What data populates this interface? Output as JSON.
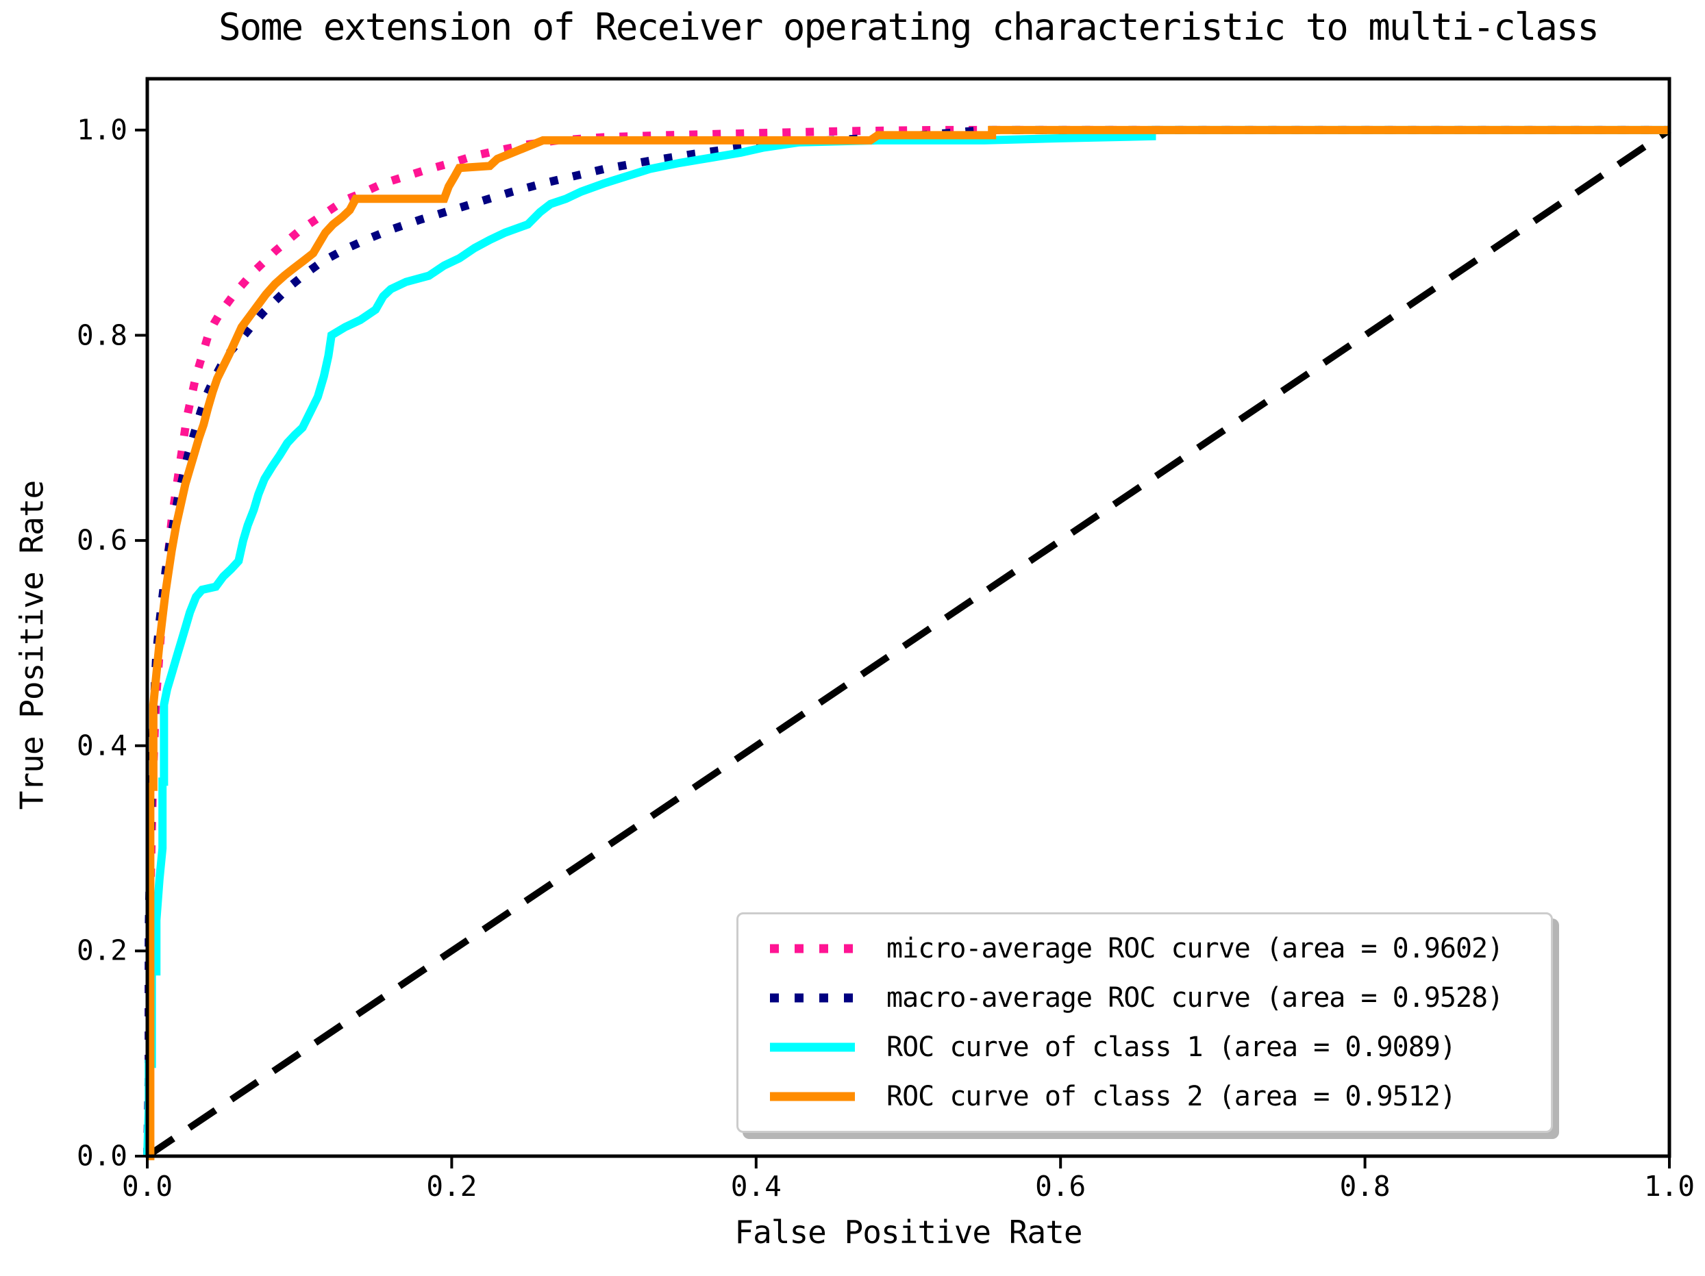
{
  "figure": {
    "title": "Some extension of Receiver operating characteristic to multi-class",
    "xlabel": "False Positive Rate",
    "ylabel": "True Positive Rate"
  },
  "chart_data": {
    "type": "line",
    "title": "Some extension of Receiver operating characteristic to multi-class",
    "xlabel": "False Positive Rate",
    "ylabel": "True Positive Rate",
    "xlim": [
      0.0,
      1.0
    ],
    "ylim": [
      0.0,
      1.05
    ],
    "x_ticks": [
      {
        "value": 0.0,
        "label": "0.0"
      },
      {
        "value": 0.2,
        "label": "0.2"
      },
      {
        "value": 0.4,
        "label": "0.4"
      },
      {
        "value": 0.6,
        "label": "0.6"
      },
      {
        "value": 0.8,
        "label": "0.8"
      },
      {
        "value": 1.0,
        "label": "1.0"
      }
    ],
    "y_ticks": [
      {
        "value": 0.0,
        "label": "0.0"
      },
      {
        "value": 0.2,
        "label": "0.2"
      },
      {
        "value": 0.4,
        "label": "0.4"
      },
      {
        "value": 0.6,
        "label": "0.6"
      },
      {
        "value": 0.8,
        "label": "0.8"
      },
      {
        "value": 1.0,
        "label": "1.0"
      }
    ],
    "grid": false,
    "legend_position": "lower right",
    "series": [
      {
        "name": "chance-diagonal",
        "label": "",
        "show_in_legend": false,
        "color": "#000000",
        "line_style": "dashed",
        "points": [
          [
            0,
            0
          ],
          [
            1,
            1
          ]
        ]
      },
      {
        "name": "micro-average",
        "label": "micro-average ROC curve (area = 0.9602)",
        "area": 0.9602,
        "show_in_legend": true,
        "color": "#ff1493",
        "line_style": "dotted",
        "points": [
          [
            0,
            0
          ],
          [
            0.001,
            0.06
          ],
          [
            0.001,
            0.18
          ],
          [
            0.002,
            0.25
          ],
          [
            0.003,
            0.32
          ],
          [
            0.004,
            0.38
          ],
          [
            0.005,
            0.42
          ],
          [
            0.006,
            0.45
          ],
          [
            0.008,
            0.49
          ],
          [
            0.009,
            0.51
          ],
          [
            0.01,
            0.53
          ],
          [
            0.012,
            0.56
          ],
          [
            0.014,
            0.59
          ],
          [
            0.016,
            0.62
          ],
          [
            0.018,
            0.64
          ],
          [
            0.02,
            0.66
          ],
          [
            0.023,
            0.69
          ],
          [
            0.026,
            0.72
          ],
          [
            0.029,
            0.74
          ],
          [
            0.032,
            0.76
          ],
          [
            0.036,
            0.78
          ],
          [
            0.04,
            0.8
          ],
          [
            0.044,
            0.812
          ],
          [
            0.048,
            0.822
          ],
          [
            0.053,
            0.832
          ],
          [
            0.058,
            0.842
          ],
          [
            0.064,
            0.852
          ],
          [
            0.07,
            0.862
          ],
          [
            0.077,
            0.872
          ],
          [
            0.084,
            0.882
          ],
          [
            0.092,
            0.892
          ],
          [
            0.1,
            0.902
          ],
          [
            0.11,
            0.912
          ],
          [
            0.12,
            0.922
          ],
          [
            0.13,
            0.932
          ],
          [
            0.14,
            0.938
          ],
          [
            0.155,
            0.948
          ],
          [
            0.17,
            0.955
          ],
          [
            0.185,
            0.962
          ],
          [
            0.2,
            0.968
          ],
          [
            0.215,
            0.975
          ],
          [
            0.23,
            0.98
          ],
          [
            0.25,
            0.986
          ],
          [
            0.27,
            0.99
          ],
          [
            0.3,
            0.993
          ],
          [
            0.34,
            0.995
          ],
          [
            0.4,
            0.997
          ],
          [
            0.46,
            0.999
          ],
          [
            0.52,
            1
          ],
          [
            1,
            1
          ]
        ]
      },
      {
        "name": "macro-average",
        "label": "macro-average ROC curve (area = 0.9528)",
        "area": 0.9528,
        "show_in_legend": true,
        "color": "#000080",
        "line_style": "dotted",
        "points": [
          [
            0,
            0
          ],
          [
            0.001,
            0.08
          ],
          [
            0.001,
            0.22
          ],
          [
            0.002,
            0.3
          ],
          [
            0.003,
            0.37
          ],
          [
            0.004,
            0.42
          ],
          [
            0.005,
            0.46
          ],
          [
            0.006,
            0.49
          ],
          [
            0.008,
            0.52
          ],
          [
            0.01,
            0.545
          ],
          [
            0.012,
            0.57
          ],
          [
            0.014,
            0.59
          ],
          [
            0.017,
            0.615
          ],
          [
            0.02,
            0.64
          ],
          [
            0.023,
            0.66
          ],
          [
            0.027,
            0.685
          ],
          [
            0.031,
            0.705
          ],
          [
            0.035,
            0.725
          ],
          [
            0.039,
            0.742
          ],
          [
            0.044,
            0.758
          ],
          [
            0.049,
            0.772
          ],
          [
            0.055,
            0.785
          ],
          [
            0.061,
            0.795
          ],
          [
            0.068,
            0.808
          ],
          [
            0.076,
            0.822
          ],
          [
            0.085,
            0.835
          ],
          [
            0.094,
            0.848
          ],
          [
            0.104,
            0.86
          ],
          [
            0.115,
            0.872
          ],
          [
            0.13,
            0.884
          ],
          [
            0.145,
            0.894
          ],
          [
            0.16,
            0.903
          ],
          [
            0.18,
            0.913
          ],
          [
            0.2,
            0.922
          ],
          [
            0.22,
            0.931
          ],
          [
            0.24,
            0.94
          ],
          [
            0.26,
            0.948
          ],
          [
            0.28,
            0.955
          ],
          [
            0.3,
            0.962
          ],
          [
            0.33,
            0.97
          ],
          [
            0.36,
            0.977
          ],
          [
            0.39,
            0.983
          ],
          [
            0.42,
            0.988
          ],
          [
            0.46,
            0.991
          ],
          [
            0.5,
            0.994
          ],
          [
            0.55,
            1
          ],
          [
            1,
            1
          ]
        ]
      },
      {
        "name": "roc-class-1",
        "label": "ROC curve of class 1 (area = 0.9089)",
        "area": 0.9089,
        "show_in_legend": true,
        "color": "#00ffff",
        "line_style": "solid",
        "points": [
          [
            0,
            0
          ],
          [
            0.001,
            0.05
          ],
          [
            0.001,
            0.09
          ],
          [
            0.003,
            0.09
          ],
          [
            0.003,
            0.18
          ],
          [
            0.006,
            0.18
          ],
          [
            0.006,
            0.23
          ],
          [
            0.008,
            0.27
          ],
          [
            0.01,
            0.3
          ],
          [
            0.01,
            0.365
          ],
          [
            0.011,
            0.365
          ],
          [
            0.011,
            0.44
          ],
          [
            0.013,
            0.455
          ],
          [
            0.016,
            0.47
          ],
          [
            0.018,
            0.48
          ],
          [
            0.02,
            0.49
          ],
          [
            0.022,
            0.5
          ],
          [
            0.025,
            0.515
          ],
          [
            0.028,
            0.53
          ],
          [
            0.032,
            0.545
          ],
          [
            0.036,
            0.552
          ],
          [
            0.045,
            0.555
          ],
          [
            0.05,
            0.565
          ],
          [
            0.055,
            0.572
          ],
          [
            0.06,
            0.58
          ],
          [
            0.063,
            0.6
          ],
          [
            0.066,
            0.615
          ],
          [
            0.07,
            0.63
          ],
          [
            0.073,
            0.645
          ],
          [
            0.077,
            0.66
          ],
          [
            0.082,
            0.672
          ],
          [
            0.087,
            0.683
          ],
          [
            0.092,
            0.695
          ],
          [
            0.097,
            0.703
          ],
          [
            0.102,
            0.71
          ],
          [
            0.107,
            0.725
          ],
          [
            0.112,
            0.74
          ],
          [
            0.116,
            0.76
          ],
          [
            0.119,
            0.78
          ],
          [
            0.121,
            0.8
          ],
          [
            0.13,
            0.808
          ],
          [
            0.14,
            0.815
          ],
          [
            0.15,
            0.825
          ],
          [
            0.155,
            0.838
          ],
          [
            0.16,
            0.845
          ],
          [
            0.17,
            0.852
          ],
          [
            0.185,
            0.858
          ],
          [
            0.195,
            0.868
          ],
          [
            0.205,
            0.875
          ],
          [
            0.215,
            0.885
          ],
          [
            0.225,
            0.893
          ],
          [
            0.235,
            0.9
          ],
          [
            0.25,
            0.908
          ],
          [
            0.258,
            0.92
          ],
          [
            0.265,
            0.928
          ],
          [
            0.275,
            0.933
          ],
          [
            0.285,
            0.94
          ],
          [
            0.3,
            0.948
          ],
          [
            0.315,
            0.955
          ],
          [
            0.33,
            0.962
          ],
          [
            0.35,
            0.968
          ],
          [
            0.37,
            0.973
          ],
          [
            0.39,
            0.978
          ],
          [
            0.405,
            0.983
          ],
          [
            0.428,
            0.988
          ],
          [
            0.48,
            0.99
          ],
          [
            0.55,
            0.99
          ],
          [
            0.6,
            0.992
          ],
          [
            0.66,
            0.994
          ],
          [
            0.66,
            1
          ],
          [
            1,
            1
          ]
        ]
      },
      {
        "name": "roc-class-2",
        "label": "ROC curve of class 2 (area = 0.9512)",
        "area": 0.9512,
        "show_in_legend": true,
        "color": "#ff8c00",
        "line_style": "solid",
        "points": [
          [
            0,
            0
          ],
          [
            0.002,
            0
          ],
          [
            0.002,
            0.36
          ],
          [
            0.004,
            0.36
          ],
          [
            0.004,
            0.44
          ],
          [
            0.006,
            0.47
          ],
          [
            0.008,
            0.5
          ],
          [
            0.01,
            0.525
          ],
          [
            0.012,
            0.55
          ],
          [
            0.014,
            0.57
          ],
          [
            0.016,
            0.59
          ],
          [
            0.019,
            0.615
          ],
          [
            0.022,
            0.635
          ],
          [
            0.025,
            0.655
          ],
          [
            0.028,
            0.67
          ],
          [
            0.031,
            0.685
          ],
          [
            0.034,
            0.7
          ],
          [
            0.037,
            0.713
          ],
          [
            0.04,
            0.73
          ],
          [
            0.043,
            0.745
          ],
          [
            0.046,
            0.758
          ],
          [
            0.05,
            0.77
          ],
          [
            0.054,
            0.782
          ],
          [
            0.058,
            0.795
          ],
          [
            0.062,
            0.808
          ],
          [
            0.067,
            0.818
          ],
          [
            0.072,
            0.828
          ],
          [
            0.078,
            0.84
          ],
          [
            0.084,
            0.85
          ],
          [
            0.09,
            0.858
          ],
          [
            0.096,
            0.865
          ],
          [
            0.103,
            0.873
          ],
          [
            0.109,
            0.88
          ],
          [
            0.113,
            0.89
          ],
          [
            0.117,
            0.9
          ],
          [
            0.122,
            0.908
          ],
          [
            0.128,
            0.915
          ],
          [
            0.133,
            0.922
          ],
          [
            0.137,
            0.933
          ],
          [
            0.195,
            0.933
          ],
          [
            0.198,
            0.945
          ],
          [
            0.202,
            0.955
          ],
          [
            0.205,
            0.963
          ],
          [
            0.225,
            0.965
          ],
          [
            0.23,
            0.972
          ],
          [
            0.24,
            0.978
          ],
          [
            0.25,
            0.984
          ],
          [
            0.26,
            0.99
          ],
          [
            0.475,
            0.99
          ],
          [
            0.48,
            0.995
          ],
          [
            0.555,
            0.995
          ],
          [
            0.555,
            1
          ],
          [
            1,
            1
          ]
        ]
      }
    ]
  }
}
